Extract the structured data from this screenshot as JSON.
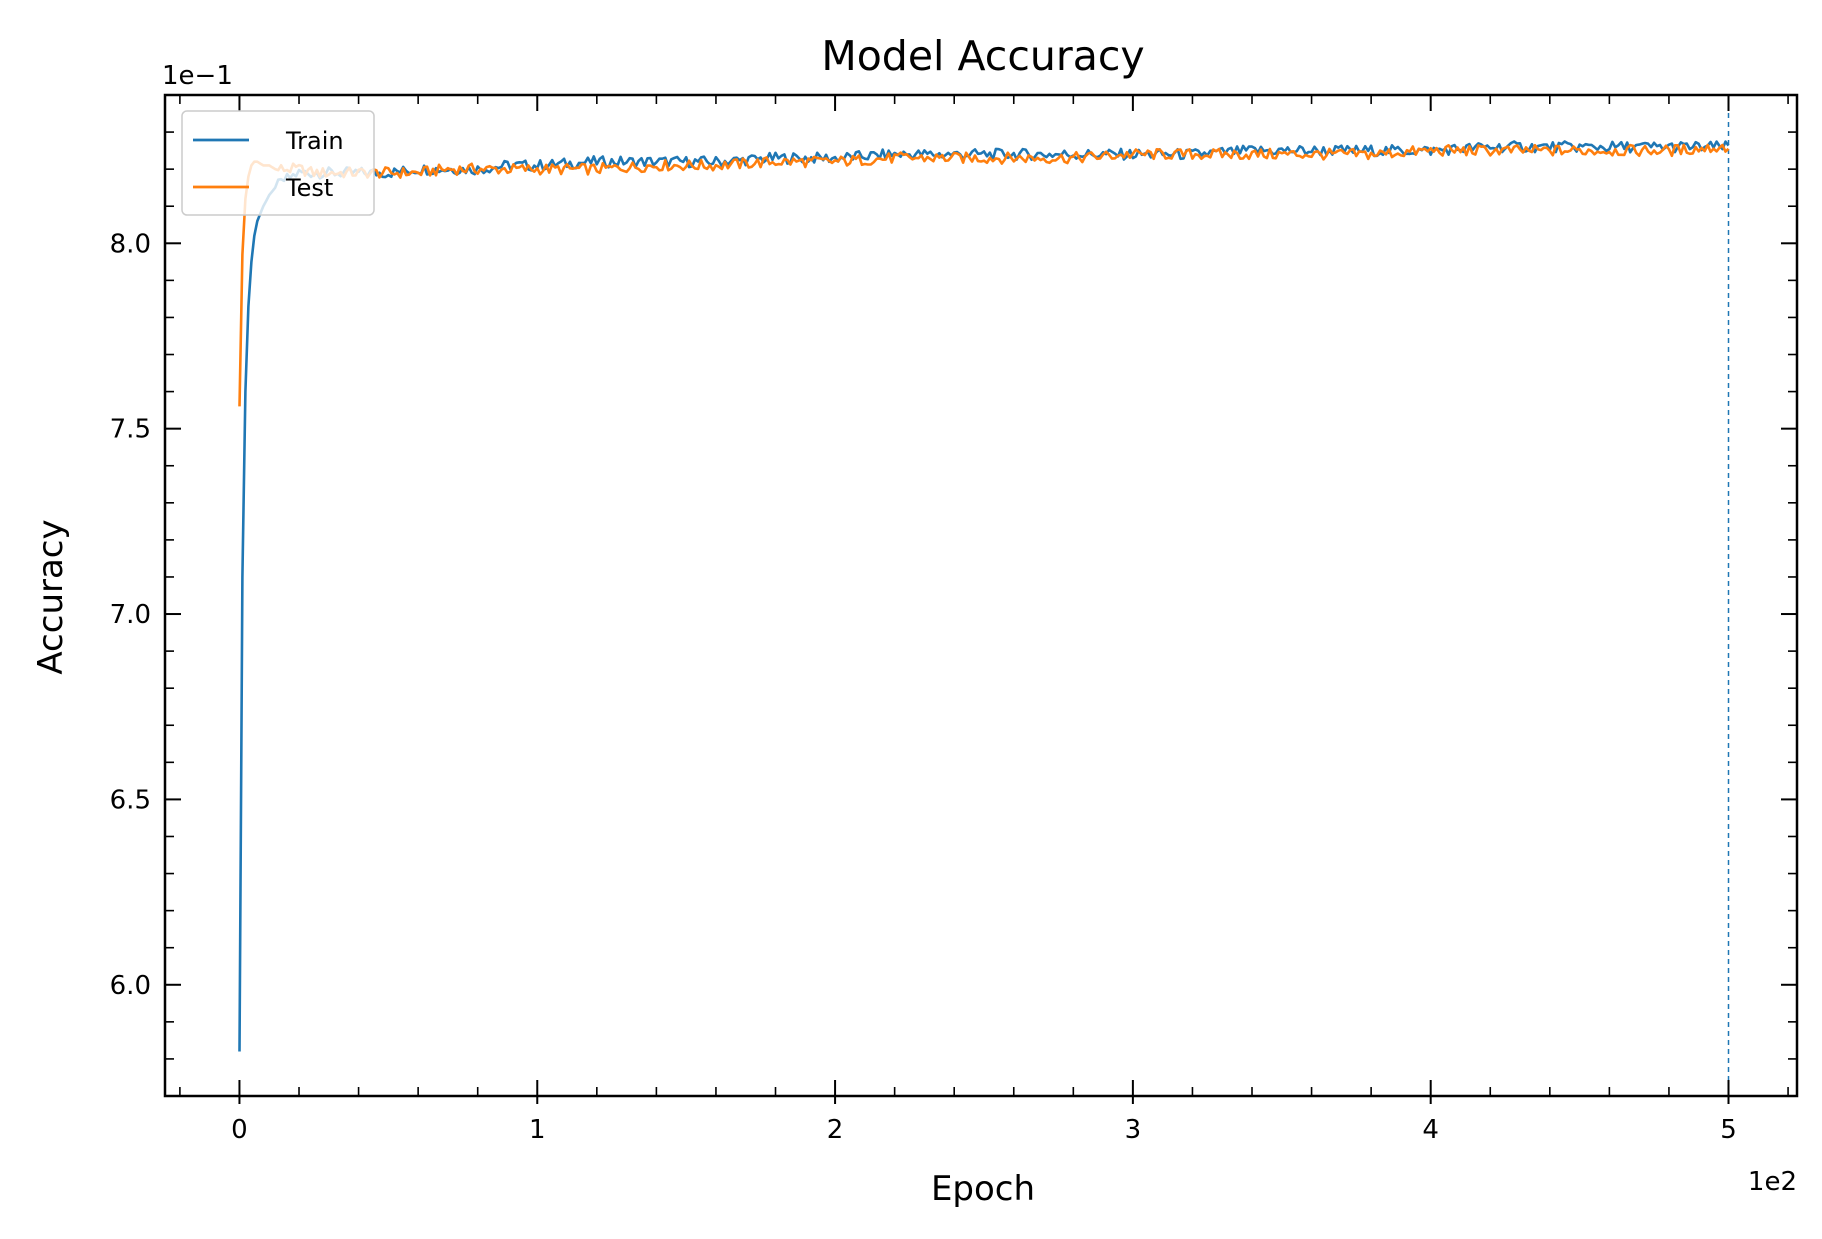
{
  "chart_data": {
    "type": "line",
    "title": "Model Accuracy",
    "xlabel": "Epoch",
    "ylabel": "Accuracy",
    "x_offset_text": "1e2",
    "y_offset_text": "1e−1",
    "xlim": [
      -0.25,
      5.23
    ],
    "ylim": [
      5.7,
      8.4
    ],
    "x_ticks": [
      0,
      1,
      2,
      3,
      4,
      5
    ],
    "x_tick_labels": [
      "0",
      "1",
      "2",
      "3",
      "4",
      "5"
    ],
    "y_ticks": [
      6.0,
      6.5,
      7.0,
      7.5,
      8.0
    ],
    "y_tick_labels": [
      "6.0",
      "6.5",
      "7.0",
      "7.5",
      "8.0"
    ],
    "grid": false,
    "legend_position": "top-left",
    "vline": {
      "x": 5.0,
      "style": "dashed",
      "color": "#1f77b4"
    },
    "series": [
      {
        "name": "Train",
        "color": "#1f77b4",
        "x": [
          0.0,
          0.01,
          0.02,
          0.03,
          0.04,
          0.05,
          0.06,
          0.08,
          0.1,
          0.12,
          0.15,
          0.2,
          0.25,
          0.3,
          0.35,
          0.4,
          0.45,
          0.5,
          0.6,
          0.7,
          0.8,
          0.9,
          1.0,
          1.2,
          1.4,
          1.6,
          1.8,
          2.0,
          2.2,
          2.4,
          2.6,
          2.8,
          3.0,
          3.2,
          3.4,
          3.6,
          3.8,
          4.0,
          4.2,
          4.4,
          4.6,
          4.8,
          5.0
        ],
        "y": [
          5.82,
          7.1,
          7.6,
          7.83,
          7.95,
          8.02,
          8.06,
          8.1,
          8.13,
          8.15,
          8.17,
          8.19,
          8.19,
          8.19,
          8.19,
          8.19,
          8.19,
          8.19,
          8.2,
          8.2,
          8.2,
          8.21,
          8.21,
          8.22,
          8.22,
          8.22,
          8.23,
          8.23,
          8.24,
          8.24,
          8.24,
          8.24,
          8.24,
          8.24,
          8.25,
          8.25,
          8.25,
          8.25,
          8.26,
          8.26,
          8.26,
          8.26,
          8.26
        ]
      },
      {
        "name": "Test",
        "color": "#ff7f0e",
        "x": [
          0.0,
          0.01,
          0.02,
          0.03,
          0.04,
          0.05,
          0.06,
          0.08,
          0.1,
          0.12,
          0.15,
          0.2,
          0.25,
          0.3,
          0.35,
          0.4,
          0.45,
          0.5,
          0.6,
          0.7,
          0.8,
          0.9,
          1.0,
          1.2,
          1.4,
          1.6,
          1.8,
          2.0,
          2.2,
          2.4,
          2.6,
          2.8,
          3.0,
          3.2,
          3.4,
          3.6,
          3.8,
          4.0,
          4.2,
          4.4,
          4.6,
          4.8,
          5.0
        ],
        "y": [
          7.56,
          7.97,
          8.12,
          8.18,
          8.21,
          8.22,
          8.22,
          8.21,
          8.21,
          8.2,
          8.2,
          8.2,
          8.19,
          8.19,
          8.19,
          8.19,
          8.19,
          8.19,
          8.19,
          8.2,
          8.2,
          8.2,
          8.2,
          8.2,
          8.21,
          8.21,
          8.22,
          8.22,
          8.23,
          8.23,
          8.23,
          8.23,
          8.24,
          8.24,
          8.24,
          8.24,
          8.24,
          8.25,
          8.25,
          8.25,
          8.25,
          8.25,
          8.26
        ]
      }
    ]
  }
}
